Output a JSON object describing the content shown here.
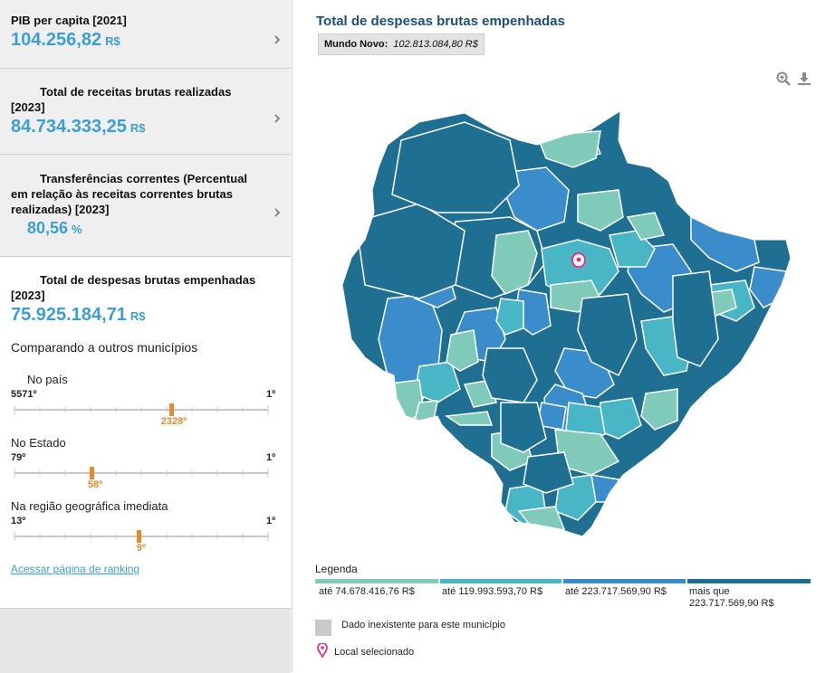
{
  "cards": [
    {
      "title": "PIB per capita [2021]",
      "value": "104.256,82",
      "unit": "R$"
    },
    {
      "title": "Total de receitas brutas realizadas",
      "title2": "[2023]",
      "value": "84.734.333,25",
      "unit": "R$"
    },
    {
      "title": "Transferências correntes (Percentual",
      "title2": "em relação às receitas correntes brutas",
      "title3": "realizadas) [2023]",
      "value": "80,56",
      "unit": "%"
    },
    {
      "title": "Total de despesas brutas empenhadas",
      "title2": "[2023]",
      "value": "75.925.184,71",
      "unit": "R$"
    }
  ],
  "comparison": {
    "title": "Comparando a outros municípios",
    "rankings": [
      {
        "label": "No país",
        "min": "5571º",
        "max": "1º",
        "position": "2328º",
        "total": 5571,
        "rank": 2328
      },
      {
        "label": "No Estado",
        "min": "79º",
        "max": "1º",
        "position": "58º",
        "total": 79,
        "rank": 58
      },
      {
        "label": "Na região geográfica imediata",
        "min": "13º",
        "max": "1º",
        "position": "9º",
        "total": 13,
        "rank": 9
      }
    ],
    "link": "Acessar página de ranking"
  },
  "map": {
    "title": "Total de despesas brutas empenhadas",
    "municipality": "Mundo Novo:",
    "municipality_value": "102.813.084,80 R$",
    "icons": [
      "zoom-in-icon",
      "download-icon"
    ]
  },
  "legend": {
    "title": "Legenda",
    "items": [
      {
        "label": "até 74.678.416,76 R$",
        "color": "#7fcab8"
      },
      {
        "label": "até 119.993.593,70 R$",
        "color": "#49b6c6"
      },
      {
        "label": "até 223.717.569,90 R$",
        "color": "#3a8ccb"
      },
      {
        "label": "mais que",
        "label2": "223.717.569,90 R$",
        "color": "#1f6f93"
      }
    ],
    "no_data": "Dado inexistente para este município",
    "selected": "Local selecionado"
  },
  "colors": {
    "accent": "#3b9fd6",
    "rank_marker": "#e8892b",
    "pin": "#e0358a"
  }
}
